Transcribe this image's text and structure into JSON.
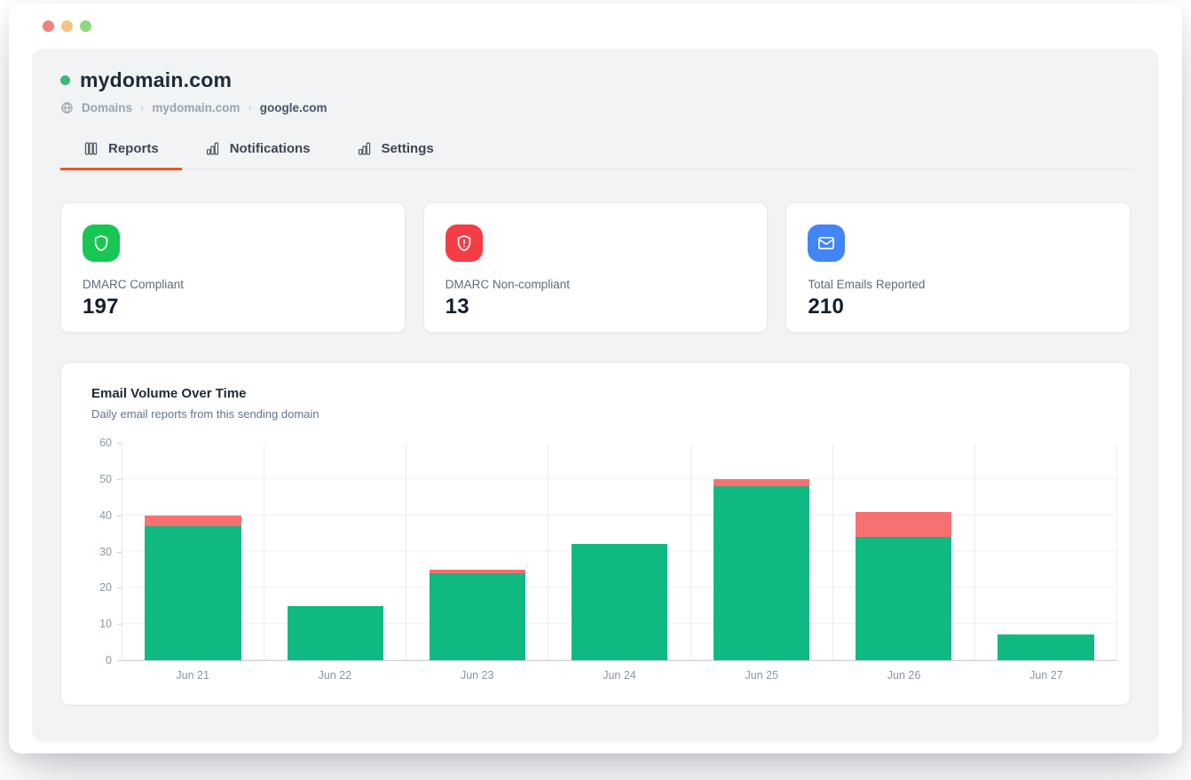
{
  "window": {
    "controls": [
      {
        "name": "close",
        "color": "#ef8280"
      },
      {
        "name": "minimize",
        "color": "#f5c480"
      },
      {
        "name": "zoom",
        "color": "#8ed87f"
      }
    ]
  },
  "header": {
    "domain": "mydomain.com",
    "status_dot_color": "#3ab87a",
    "breadcrumb": {
      "items": [
        "Domains",
        "mydomain.com",
        "google.com"
      ],
      "separator": "›"
    }
  },
  "tabs": [
    {
      "label": "Reports",
      "active": true,
      "icon": "columns-chart-icon"
    },
    {
      "label": "Notifications",
      "active": false,
      "icon": "bar-chart-icon"
    },
    {
      "label": "Settings",
      "active": false,
      "icon": "bar-chart-icon"
    }
  ],
  "stats": [
    {
      "label": "DMARC Compliant",
      "value": "197",
      "icon": "shield-icon",
      "icon_bg": "#17c653"
    },
    {
      "label": "DMARC Non-compliant",
      "value": "13",
      "icon": "shield-alert-icon",
      "icon_bg": "#f43d46"
    },
    {
      "label": "Total Emails Reported",
      "value": "210",
      "icon": "mail-icon",
      "icon_bg": "#4285f4"
    }
  ],
  "chart": {
    "title": "Email Volume Over Time",
    "subtitle": "Daily email reports from this sending domain"
  },
  "chart_data": {
    "type": "bar",
    "stacked": true,
    "title": "Email Volume Over Time",
    "categories": [
      "Jun 21",
      "Jun 22",
      "Jun 23",
      "Jun 24",
      "Jun 25",
      "Jun 26",
      "Jun 27"
    ],
    "series": [
      {
        "name": "DMARC Compliant",
        "color": "#10b981",
        "values": [
          37,
          15,
          24,
          32,
          48,
          34,
          7
        ]
      },
      {
        "name": "DMARC Non-compliant",
        "color": "#f87171",
        "values": [
          3,
          0,
          1,
          0,
          2,
          7,
          0
        ]
      }
    ],
    "totals": [
      40,
      15,
      25,
      32,
      50,
      41,
      7
    ],
    "xlabel": "",
    "ylabel": "",
    "ylim": [
      0,
      60
    ],
    "yticks": [
      0,
      10,
      20,
      30,
      40,
      50,
      60
    ],
    "grid": true,
    "legend": "none"
  },
  "colors": {
    "accent_underline": "#f4511e",
    "panel_bg": "#f1f3f4",
    "compliant_green": "#10b981",
    "noncompliant_red": "#f87171"
  }
}
